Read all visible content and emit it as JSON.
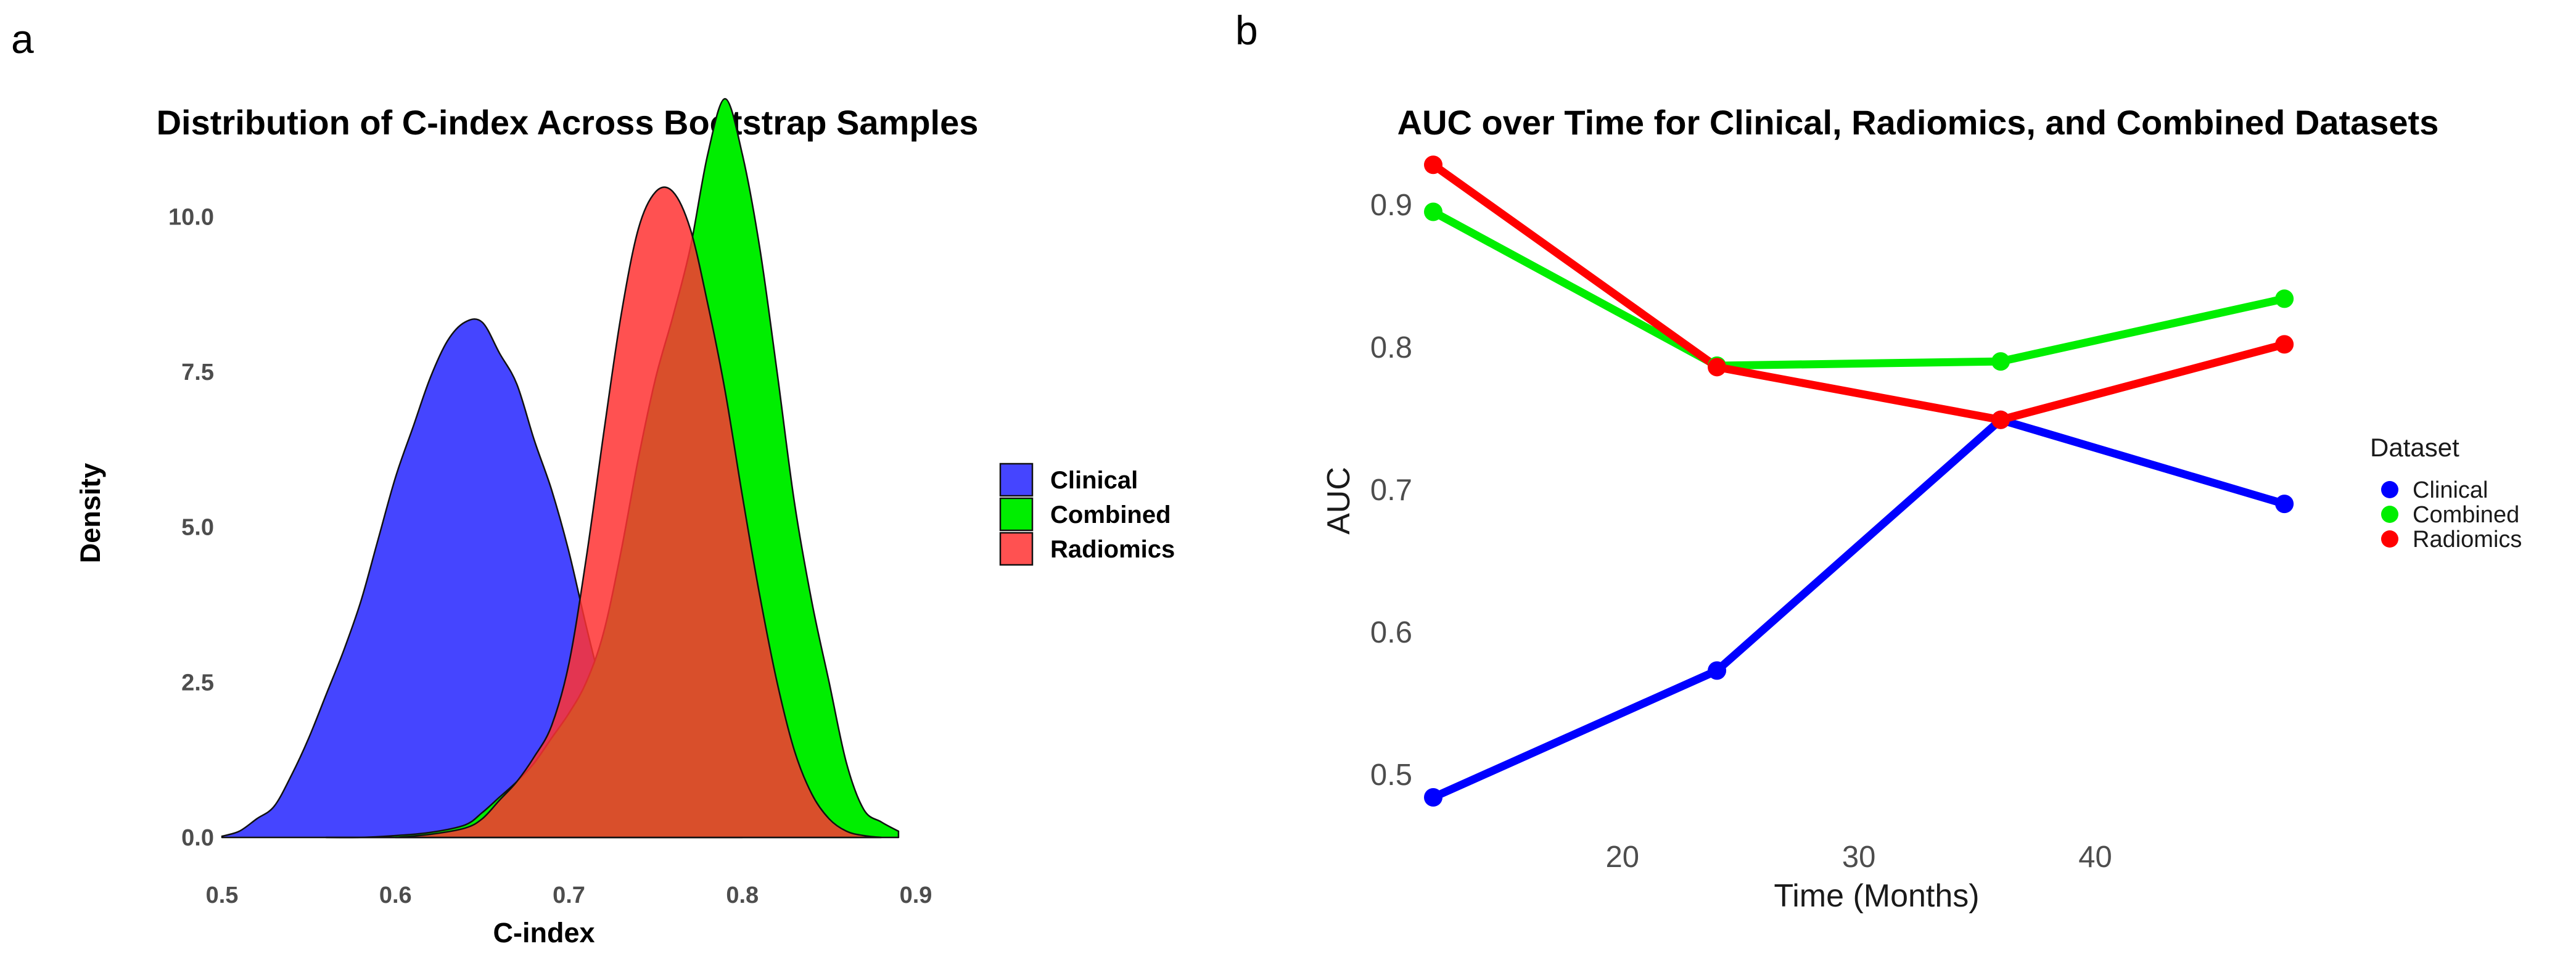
{
  "panels": {
    "a": {
      "label": "a"
    },
    "b": {
      "label": "b"
    }
  },
  "chart_data": [
    {
      "type": "area",
      "subtype": "density",
      "title": "Distribution of C-index Across Bootstrap Samples",
      "xlabel": "C-index",
      "ylabel": "Density",
      "xlim": [
        0.5,
        0.9
      ],
      "ylim": [
        0,
        12
      ],
      "x_ticks": [
        0.5,
        0.6,
        0.7,
        0.8,
        0.9
      ],
      "x_tick_labels": [
        "0.5",
        "0.6",
        "0.7",
        "0.8",
        "0.9"
      ],
      "y_ticks": [
        0,
        2.5,
        5,
        7.5,
        10
      ],
      "y_tick_labels": [
        "0.0",
        "2.5",
        "5.0",
        "7.5",
        "10.0"
      ],
      "grid": false,
      "legend": {
        "position": "right",
        "title": ""
      },
      "series": [
        {
          "name": "Clinical",
          "color": "#3b3bff",
          "opacity": 0.95,
          "x": [
            0.5,
            0.51,
            0.52,
            0.53,
            0.54,
            0.55,
            0.56,
            0.57,
            0.58,
            0.59,
            0.6,
            0.61,
            0.62,
            0.63,
            0.64,
            0.65,
            0.66,
            0.67,
            0.68,
            0.69,
            0.7,
            0.71,
            0.72,
            0.73,
            0.74,
            0.75,
            0.76,
            0.77,
            0.78,
            0.79,
            0.8
          ],
          "values": [
            0.02,
            0.1,
            0.3,
            0.5,
            1.0,
            1.6,
            2.3,
            3.0,
            3.8,
            4.8,
            5.8,
            6.6,
            7.4,
            8.0,
            8.3,
            8.3,
            7.8,
            7.3,
            6.4,
            5.6,
            4.6,
            3.4,
            2.3,
            1.4,
            0.8,
            0.45,
            0.22,
            0.1,
            0.04,
            0.01,
            0.0
          ]
        },
        {
          "name": "Combined",
          "color": "#00ee00",
          "opacity": 1.0,
          "x": [
            0.56,
            0.58,
            0.6,
            0.62,
            0.64,
            0.65,
            0.66,
            0.67,
            0.68,
            0.69,
            0.7,
            0.71,
            0.72,
            0.73,
            0.74,
            0.75,
            0.76,
            0.77,
            0.78,
            0.79,
            0.8,
            0.81,
            0.82,
            0.83,
            0.84,
            0.85,
            0.86,
            0.87,
            0.88,
            0.89
          ],
          "values": [
            0.0,
            0.0,
            0.03,
            0.08,
            0.2,
            0.4,
            0.65,
            0.9,
            1.2,
            1.6,
            2.0,
            2.5,
            3.3,
            4.6,
            6.1,
            7.4,
            8.4,
            9.5,
            11.0,
            11.9,
            11.0,
            9.5,
            7.5,
            5.4,
            3.8,
            2.5,
            1.2,
            0.45,
            0.25,
            0.1
          ]
        },
        {
          "name": "Radiomics",
          "color": "#ff3333",
          "opacity": 0.85,
          "x": [
            0.6,
            0.62,
            0.64,
            0.65,
            0.66,
            0.67,
            0.68,
            0.69,
            0.7,
            0.71,
            0.72,
            0.73,
            0.74,
            0.75,
            0.76,
            0.77,
            0.78,
            0.79,
            0.8,
            0.81,
            0.82,
            0.83,
            0.84,
            0.85,
            0.86,
            0.87,
            0.88
          ],
          "values": [
            0.0,
            0.05,
            0.15,
            0.3,
            0.6,
            0.9,
            1.3,
            1.8,
            2.8,
            4.5,
            6.5,
            8.4,
            9.8,
            10.4,
            10.4,
            9.8,
            8.6,
            7.2,
            5.5,
            3.9,
            2.5,
            1.4,
            0.7,
            0.3,
            0.1,
            0.03,
            0.0
          ]
        }
      ]
    },
    {
      "type": "line",
      "title": "AUC over Time for Clinical, Radiomics, and Combined Datasets",
      "xlabel": "Time (Months)",
      "ylabel": "AUC",
      "xlim": [
        10.8,
        50.5
      ],
      "ylim": [
        0.455,
        0.945
      ],
      "x": [
        12,
        24,
        36,
        48
      ],
      "x_ticks": [
        20,
        30,
        40
      ],
      "x_tick_labels": [
        "20",
        "30",
        "40"
      ],
      "y_ticks": [
        0.5,
        0.6,
        0.7,
        0.8,
        0.9
      ],
      "y_tick_labels": [
        "0.5",
        "0.6",
        "0.7",
        "0.8",
        "0.9"
      ],
      "grid": false,
      "legend": {
        "position": "right",
        "title": "Dataset"
      },
      "series": [
        {
          "name": "Clinical",
          "color": "#0000ff",
          "values": [
            0.484,
            0.573,
            0.749,
            0.69
          ]
        },
        {
          "name": "Combined",
          "color": "#00ee00",
          "values": [
            0.895,
            0.787,
            0.79,
            0.834
          ]
        },
        {
          "name": "Radiomics",
          "color": "#ff0000",
          "values": [
            0.928,
            0.786,
            0.749,
            0.802
          ]
        }
      ]
    }
  ]
}
